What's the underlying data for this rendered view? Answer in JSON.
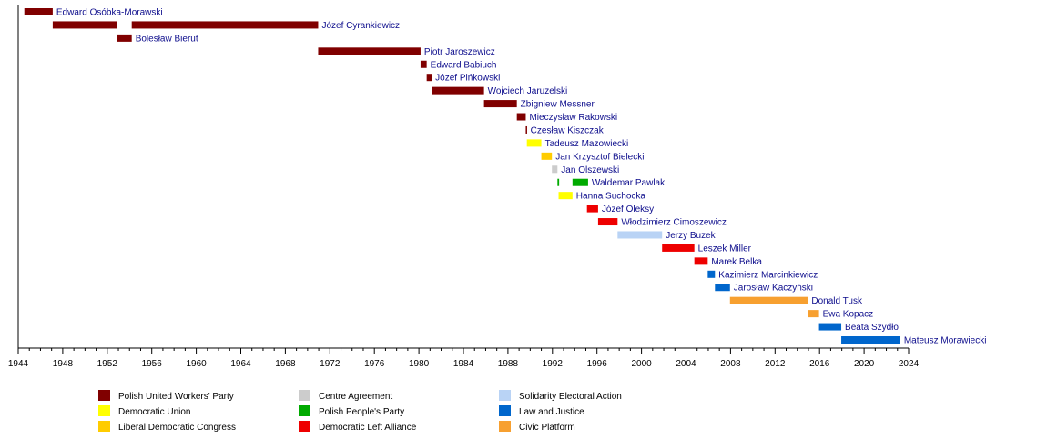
{
  "chart_data": {
    "type": "bar",
    "orientation": "horizontal-timeline",
    "title": "",
    "xlabel": "",
    "ylabel": "",
    "xlim": [
      1944,
      2024
    ],
    "x_ticks": [
      "1944",
      "1948",
      "1952",
      "1956",
      "1960",
      "1964",
      "1968",
      "1972",
      "1976",
      "1980",
      "1984",
      "1988",
      "1992",
      "1996",
      "2000",
      "2004",
      "2008",
      "2012",
      "2016",
      "2020",
      "2024"
    ],
    "grid": false,
    "legend_position": "bottom",
    "parties": [
      {
        "key": "pzpr",
        "name": "Polish United Workers' Party",
        "color": "#800000"
      },
      {
        "key": "ud",
        "name": "Democratic Union",
        "color": "#ffff00"
      },
      {
        "key": "kld",
        "name": "Liberal Democratic Congress",
        "color": "#ffcc00"
      },
      {
        "key": "pc",
        "name": "Centre Agreement",
        "color": "#cccccc"
      },
      {
        "key": "psl",
        "name": "Polish People's Party",
        "color": "#00aa00"
      },
      {
        "key": "sld",
        "name": "Democratic Left Alliance",
        "color": "#ee0000"
      },
      {
        "key": "aws",
        "name": "Solidarity Electoral Action",
        "color": "#b9d3f5"
      },
      {
        "key": "pis",
        "name": "Law and Justice",
        "color": "#0066cc"
      },
      {
        "key": "po",
        "name": "Civic Platform",
        "color": "#f7a030"
      }
    ],
    "rows": [
      {
        "name": "Edward Osóbka-Morawski",
        "terms": [
          {
            "start": 1944.55,
            "end": 1947.1,
            "party": "pzpr"
          }
        ]
      },
      {
        "name": "Józef Cyrankiewicz",
        "terms": [
          {
            "start": 1947.1,
            "end": 1952.9,
            "party": "pzpr"
          },
          {
            "start": 1954.2,
            "end": 1970.95,
            "party": "pzpr"
          }
        ]
      },
      {
        "name": "Bolesław Bierut",
        "terms": [
          {
            "start": 1952.9,
            "end": 1954.2,
            "party": "pzpr"
          }
        ]
      },
      {
        "name": "Piotr Jaroszewicz",
        "terms": [
          {
            "start": 1970.95,
            "end": 1980.15,
            "party": "pzpr"
          }
        ]
      },
      {
        "name": "Edward Babiuch",
        "terms": [
          {
            "start": 1980.15,
            "end": 1980.7,
            "party": "pzpr"
          }
        ]
      },
      {
        "name": "Józef Pińkowski",
        "terms": [
          {
            "start": 1980.7,
            "end": 1981.15,
            "party": "pzpr"
          }
        ]
      },
      {
        "name": "Wojciech Jaruzelski",
        "terms": [
          {
            "start": 1981.15,
            "end": 1985.85,
            "party": "pzpr"
          }
        ]
      },
      {
        "name": "Zbigniew Messner",
        "terms": [
          {
            "start": 1985.85,
            "end": 1988.8,
            "party": "pzpr"
          }
        ]
      },
      {
        "name": "Mieczysław Rakowski",
        "terms": [
          {
            "start": 1988.8,
            "end": 1989.6,
            "party": "pzpr"
          }
        ]
      },
      {
        "name": "Czesław Kiszczak",
        "terms": [
          {
            "start": 1989.6,
            "end": 1989.7,
            "party": "pzpr"
          }
        ]
      },
      {
        "name": "Tadeusz Mazowiecki",
        "terms": [
          {
            "start": 1989.7,
            "end": 1991.0,
            "party": "ud"
          }
        ]
      },
      {
        "name": "Jan Krzysztof Bielecki",
        "terms": [
          {
            "start": 1991.0,
            "end": 1991.95,
            "party": "kld"
          }
        ]
      },
      {
        "name": "Jan Olszewski",
        "terms": [
          {
            "start": 1991.95,
            "end": 1992.45,
            "party": "pc"
          }
        ]
      },
      {
        "name": "Waldemar Pawlak",
        "terms": [
          {
            "start": 1992.45,
            "end": 1992.6,
            "party": "psl"
          },
          {
            "start": 1993.8,
            "end": 1995.2,
            "party": "psl"
          }
        ]
      },
      {
        "name": "Hanna Suchocka",
        "terms": [
          {
            "start": 1992.55,
            "end": 1993.8,
            "party": "ud"
          }
        ]
      },
      {
        "name": "Józef Oleksy",
        "terms": [
          {
            "start": 1995.1,
            "end": 1996.1,
            "party": "sld"
          }
        ]
      },
      {
        "name": "Włodzimierz Cimoszewicz",
        "terms": [
          {
            "start": 1996.1,
            "end": 1997.85,
            "party": "sld"
          }
        ]
      },
      {
        "name": "Jerzy Buzek",
        "terms": [
          {
            "start": 1997.85,
            "end": 2001.85,
            "party": "aws"
          }
        ]
      },
      {
        "name": "Leszek Miller",
        "terms": [
          {
            "start": 2001.85,
            "end": 2004.75,
            "party": "sld"
          }
        ]
      },
      {
        "name": "Marek Belka",
        "terms": [
          {
            "start": 2004.75,
            "end": 2005.95,
            "party": "sld"
          }
        ]
      },
      {
        "name": "Kazimierz Marcinkiewicz",
        "terms": [
          {
            "start": 2005.95,
            "end": 2006.6,
            "party": "pis"
          }
        ]
      },
      {
        "name": "Jarosław Kaczyński",
        "terms": [
          {
            "start": 2006.6,
            "end": 2007.95,
            "party": "pis"
          }
        ]
      },
      {
        "name": "Donald Tusk",
        "terms": [
          {
            "start": 2007.95,
            "end": 2014.95,
            "party": "po"
          }
        ]
      },
      {
        "name": "Ewa Kopacz",
        "terms": [
          {
            "start": 2014.95,
            "end": 2015.95,
            "party": "po"
          }
        ]
      },
      {
        "name": "Beata Szydło",
        "terms": [
          {
            "start": 2015.95,
            "end": 2017.95,
            "party": "pis"
          }
        ]
      },
      {
        "name": "Mateusz Morawiecki",
        "terms": [
          {
            "start": 2017.95,
            "end": 2023.25,
            "party": "pis"
          }
        ]
      }
    ]
  }
}
